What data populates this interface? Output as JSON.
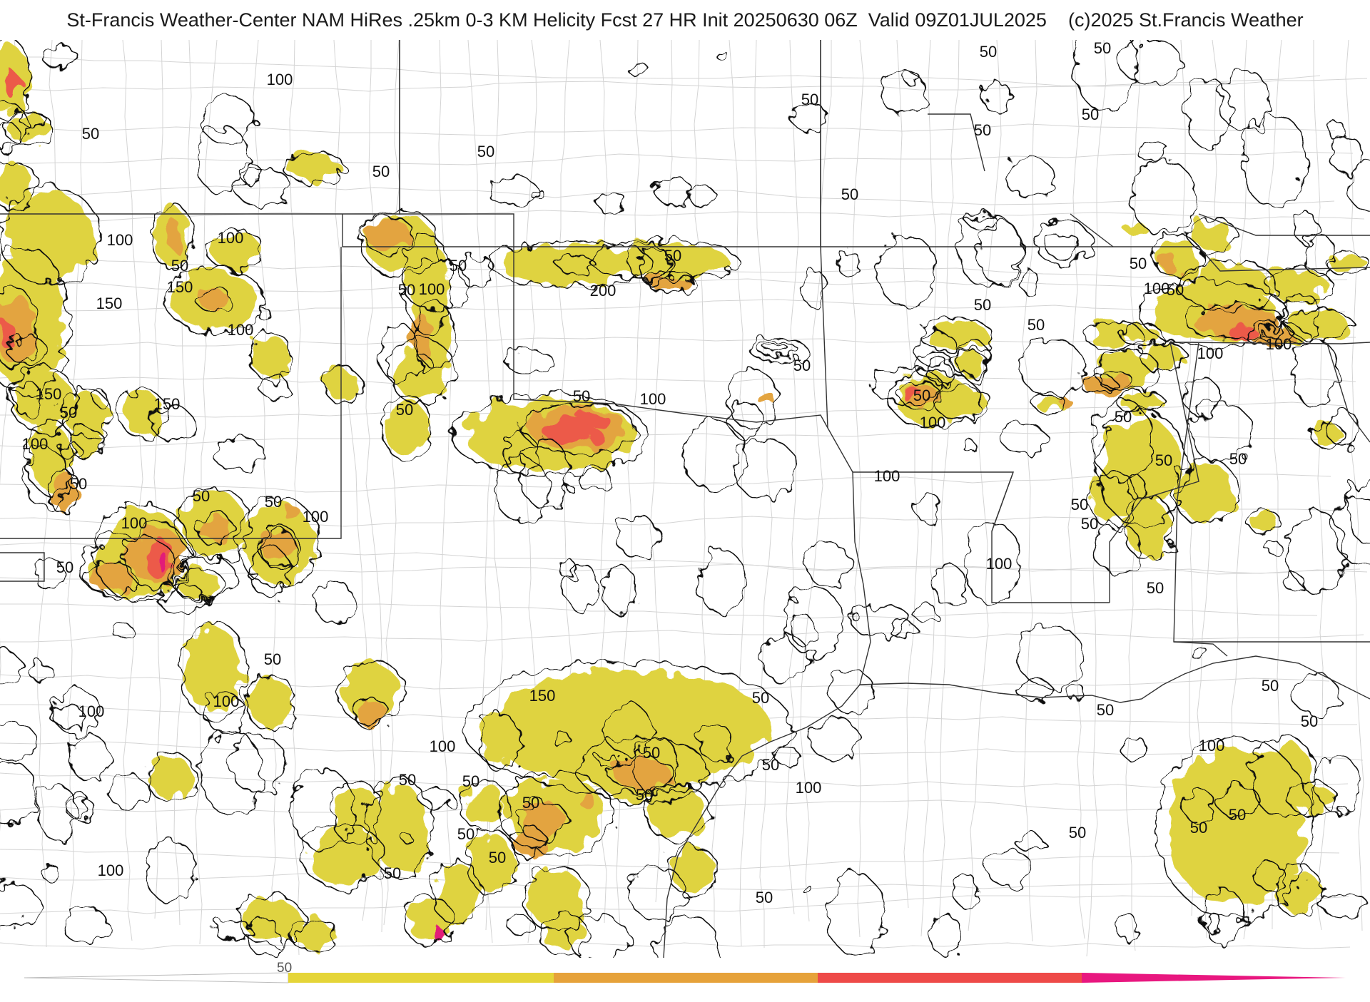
{
  "header": {
    "title": "St-Francis Weather-Center NAM HiRes .25km 0-3 KM Helicity Fcst 27 HR Init 20250630 06Z  Valid 09Z01JUL2025",
    "copyright": "(c)2025 St.Francis Weather"
  },
  "legend": {
    "first_tick": "50",
    "colors": [
      "#e5d538",
      "#e6a23a",
      "#ee4a48",
      "#e8177f"
    ]
  },
  "colors": {
    "shade_50": "#dfd340",
    "shade_100": "#e3a440",
    "shade_150": "#ec5a4a",
    "shade_200": "#e21a78",
    "contour": "#111111",
    "borders": "#333333",
    "counties": "#c8c8c8"
  },
  "contour_labels": [
    "100",
    "50",
    "50",
    "50",
    "50",
    "50",
    "50",
    "50",
    "50",
    "50",
    "100",
    "150",
    "100",
    "50",
    "100",
    "150",
    "50",
    "50",
    "200",
    "100",
    "150",
    "50",
    "100",
    "150",
    "50",
    "100",
    "50",
    "50",
    "50",
    "100",
    "50",
    "100",
    "50",
    "50",
    "50",
    "100",
    "50",
    "50",
    "50",
    "100",
    "50",
    "50",
    "100",
    "50",
    "50",
    "50",
    "50",
    "100",
    "100",
    "50",
    "100",
    "50",
    "50",
    "50",
    "100",
    "50",
    "50",
    "50",
    "50",
    "50",
    "50",
    "100",
    "150",
    "100",
    "50",
    "50",
    "50",
    "50",
    "50",
    "50",
    "50",
    "100",
    "100",
    "100",
    "50",
    "50",
    "50"
  ]
}
